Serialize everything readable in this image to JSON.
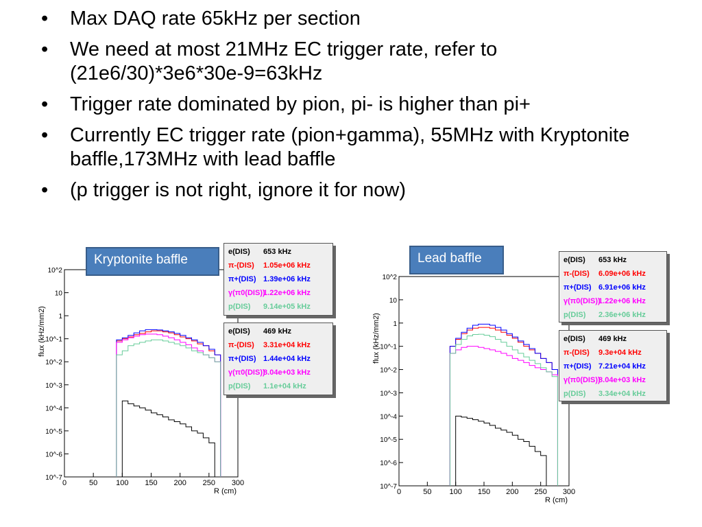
{
  "bullets": [
    "Max DAQ rate 65kHz per section",
    "We need at most 21MHz EC trigger rate,  refer to (21e6/30)*3e6*30e-9=63kHz",
    "Trigger rate dominated by pion, pi- is higher than pi+",
    "Currently EC trigger rate (pion+gamma), 55MHz with Kryptonite baffle,173MHz with lead baffle",
    "(p trigger is not right, ignore it for now)"
  ],
  "tags": {
    "left": "Kryptonite baffle",
    "right": "Lead baffle"
  },
  "colors": {
    "e": "#000000",
    "pim": "#ff0000",
    "pip": "#0000ff",
    "gamma": "#ff00ff",
    "p": "#66cc99",
    "tag_bg": "#4a7ebb"
  },
  "legends": {
    "left_top": [
      {
        "name": "e(DIS)",
        "value": "653 kHz",
        "color": "#000000"
      },
      {
        "name": "π-(DIS)",
        "value": "1.05e+06 kHz",
        "color": "#ff0000"
      },
      {
        "name": "π+(DIS)",
        "value": "1.39e+06 kHz",
        "color": "#0000ff"
      },
      {
        "name": "γ(π0(DIS))",
        "value": "1.22e+06 kHz",
        "color": "#ff00ff"
      },
      {
        "name": "p(DIS)",
        "value": "9.14e+05 kHz",
        "color": "#66cc99"
      }
    ],
    "left_bottom": [
      {
        "name": "e(DIS)",
        "value": "469 kHz",
        "color": "#000000"
      },
      {
        "name": "π-(DIS)",
        "value": "3.31e+04 kHz",
        "color": "#ff0000"
      },
      {
        "name": "π+(DIS)",
        "value": "1.44e+04 kHz",
        "color": "#0000ff"
      },
      {
        "name": "γ(π0(DIS))",
        "value": "8.04e+03 kHz",
        "color": "#ff00ff"
      },
      {
        "name": "p(DIS)",
        "value": "1.1e+04 kHz",
        "color": "#66cc99"
      }
    ],
    "right_top": [
      {
        "name": "e(DIS)",
        "value": "653 kHz",
        "color": "#000000"
      },
      {
        "name": "π-(DIS)",
        "value": "6.09e+06 kHz",
        "color": "#ff0000"
      },
      {
        "name": "π+(DIS)",
        "value": "6.91e+06 kHz",
        "color": "#0000ff"
      },
      {
        "name": "γ(π0(DIS))",
        "value": "1.22e+06 kHz",
        "color": "#ff00ff"
      },
      {
        "name": "p(DIS)",
        "value": "2.36e+06 kHz",
        "color": "#66cc99"
      }
    ],
    "right_bottom": [
      {
        "name": "e(DIS)",
        "value": "469 kHz",
        "color": "#000000"
      },
      {
        "name": "π-(DIS)",
        "value": "9.3e+04 kHz",
        "color": "#ff0000"
      },
      {
        "name": "π+(DIS)",
        "value": "7.21e+04 kHz",
        "color": "#0000ff"
      },
      {
        "name": "γ(π0(DIS))",
        "value": "8.04e+03 kHz",
        "color": "#ff00ff"
      },
      {
        "name": "p(DIS)",
        "value": "3.34e+04 kHz",
        "color": "#66cc99"
      }
    ]
  },
  "chart_data": [
    {
      "type": "line",
      "title": "",
      "xlabel": "R (cm)",
      "ylabel": "flux (kHz/mm2)",
      "log_y": true,
      "xlim": [
        0,
        300
      ],
      "ylim": [
        1e-07,
        100
      ],
      "xticks": [
        "0",
        "50",
        "100",
        "150",
        "200",
        "250",
        "300"
      ],
      "yticks": [
        "10^-7",
        "10^-6",
        "10^-5",
        "10^-4",
        "10^-3",
        "10^-2",
        "10^-1",
        "1",
        "10",
        "10^2"
      ],
      "series": [
        {
          "name": "π-(DIS)",
          "x": [
            90,
            100,
            110,
            120,
            130,
            140,
            150,
            160,
            170,
            180,
            190,
            200,
            210,
            220,
            230,
            240,
            250,
            260
          ],
          "y": [
            0.08,
            0.1,
            0.12,
            0.15,
            0.17,
            0.2,
            0.22,
            0.22,
            0.2,
            0.18,
            0.15,
            0.12,
            0.1,
            0.08,
            0.06,
            0.05,
            0.03,
            0.02
          ]
        },
        {
          "name": "π+(DIS)",
          "x": [
            90,
            100,
            110,
            120,
            130,
            140,
            150,
            160,
            170,
            180,
            190,
            200,
            210,
            220,
            230,
            240,
            250,
            260
          ],
          "y": [
            0.09,
            0.11,
            0.14,
            0.18,
            0.22,
            0.25,
            0.25,
            0.24,
            0.22,
            0.2,
            0.17,
            0.14,
            0.11,
            0.09,
            0.07,
            0.05,
            0.035,
            0.02
          ]
        },
        {
          "name": "γ(π0(DIS))",
          "x": [
            90,
            100,
            110,
            120,
            130,
            140,
            150,
            160,
            170,
            180,
            190,
            200,
            210,
            220,
            230,
            240,
            250,
            260
          ],
          "y": [
            0.07,
            0.09,
            0.11,
            0.13,
            0.15,
            0.16,
            0.16,
            0.15,
            0.13,
            0.11,
            0.09,
            0.07,
            0.055,
            0.04,
            0.03,
            0.02,
            0.015,
            0.01
          ]
        },
        {
          "name": "p(DIS)",
          "x": [
            90,
            100,
            110,
            120,
            130,
            140,
            150,
            160,
            170,
            180,
            190,
            200,
            210,
            220,
            230,
            240,
            250,
            260
          ],
          "y": [
            0.02,
            0.03,
            0.05,
            0.06,
            0.07,
            0.08,
            0.09,
            0.09,
            0.08,
            0.07,
            0.06,
            0.05,
            0.04,
            0.03,
            0.025,
            0.02,
            0.015,
            0.01
          ]
        },
        {
          "name": "e(DIS)",
          "x": [
            100,
            110,
            120,
            130,
            140,
            150,
            160,
            170,
            180,
            190,
            200,
            210,
            220,
            230,
            240,
            250
          ],
          "y": [
            0.0002,
            0.00015,
            0.00012,
            0.0001,
            8e-05,
            6e-05,
            5e-05,
            4e-05,
            3e-05,
            2.5e-05,
            2e-05,
            1.5e-05,
            1e-05,
            8e-06,
            5e-06,
            3e-06
          ]
        }
      ]
    },
    {
      "type": "line",
      "title": "",
      "xlabel": "R (cm)",
      "ylabel": "flux (kHz/mm2)",
      "log_y": true,
      "xlim": [
        0,
        300
      ],
      "ylim": [
        1e-07,
        100
      ],
      "xticks": [
        "0",
        "50",
        "100",
        "150",
        "200",
        "250",
        "300"
      ],
      "yticks": [
        "10^-7",
        "10^-6",
        "10^-5",
        "10^-4",
        "10^-3",
        "10^-2",
        "10^-1",
        "1",
        "10",
        "10^2"
      ],
      "series": [
        {
          "name": "π-(DIS)",
          "x": [
            90,
            100,
            110,
            120,
            130,
            140,
            150,
            160,
            170,
            180,
            190,
            200,
            210,
            220,
            230,
            240,
            250,
            260,
            270
          ],
          "y": [
            0.1,
            0.2,
            0.35,
            0.5,
            0.6,
            0.65,
            0.65,
            0.6,
            0.5,
            0.4,
            0.3,
            0.22,
            0.15,
            0.1,
            0.07,
            0.05,
            0.03,
            0.02,
            0.01
          ]
        },
        {
          "name": "π+(DIS)",
          "x": [
            90,
            100,
            110,
            120,
            130,
            140,
            150,
            160,
            170,
            180,
            190,
            200,
            210,
            220,
            230,
            240,
            250,
            260,
            270
          ],
          "y": [
            0.1,
            0.22,
            0.4,
            0.6,
            0.8,
            0.9,
            0.9,
            0.8,
            0.65,
            0.5,
            0.35,
            0.25,
            0.17,
            0.12,
            0.08,
            0.05,
            0.03,
            0.02,
            0.01
          ]
        },
        {
          "name": "γ(π0(DIS))",
          "x": [
            90,
            100,
            110,
            120,
            130,
            140,
            150,
            160,
            170,
            180,
            190,
            200,
            210,
            220,
            230,
            240,
            250,
            260,
            270
          ],
          "y": [
            0.05,
            0.07,
            0.09,
            0.1,
            0.1,
            0.09,
            0.08,
            0.07,
            0.06,
            0.05,
            0.04,
            0.03,
            0.025,
            0.02,
            0.015,
            0.012,
            0.01,
            0.008,
            0.006
          ]
        },
        {
          "name": "p(DIS)",
          "x": [
            90,
            100,
            110,
            120,
            130,
            140,
            150,
            160,
            170,
            180,
            190,
            200,
            210,
            220,
            230,
            240,
            250,
            260,
            270
          ],
          "y": [
            0.05,
            0.12,
            0.2,
            0.28,
            0.32,
            0.33,
            0.3,
            0.26,
            0.2,
            0.15,
            0.1,
            0.07,
            0.05,
            0.035,
            0.025,
            0.018,
            0.012,
            0.008,
            0.005
          ]
        },
        {
          "name": "e(DIS)",
          "x": [
            100,
            110,
            120,
            130,
            140,
            150,
            160,
            170,
            180,
            190,
            200,
            210,
            220,
            230,
            240,
            250
          ],
          "y": [
            0.0001,
            9e-05,
            8e-05,
            7e-05,
            6e-05,
            5e-05,
            4e-05,
            3e-05,
            2.5e-05,
            2e-05,
            1.5e-05,
            1e-05,
            8e-06,
            5e-06,
            3e-06,
            2e-06
          ]
        }
      ]
    }
  ]
}
